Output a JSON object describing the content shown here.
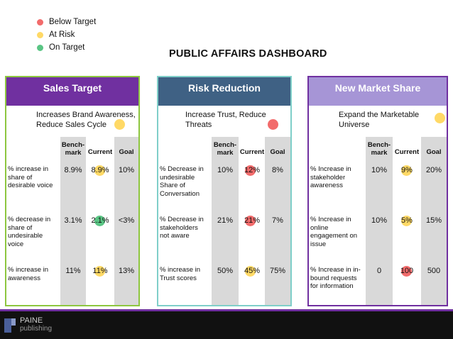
{
  "legend": [
    {
      "label": "Below Target",
      "color": "#f26b6b"
    },
    {
      "label": "At Risk",
      "color": "#ffd966"
    },
    {
      "label": "On Target",
      "color": "#5ac584"
    }
  ],
  "title": "PUBLIC AFFAIRS DASHBOARD",
  "column_headers": {
    "benchmark_line1": "Bench-",
    "benchmark_line2": "mark",
    "current": "Current",
    "goal": "Goal"
  },
  "panels": [
    {
      "title": "Sales Target",
      "border_color": "#8dc63f",
      "header_color": "#7030a0",
      "desc_line1": "Increases Brand Awareness,",
      "desc_line2": "Reduce Sales Cycle",
      "desc_status": "At Risk",
      "rows": [
        {
          "metric_line1": "% increase in",
          "metric_line2": "share of",
          "metric_line3": "desirable voice",
          "metric_line4": "",
          "benchmark": "8.9%",
          "current": "8.9%",
          "goal": "10%",
          "status": "At Risk"
        },
        {
          "metric_line1": "% decrease in",
          "metric_line2": "share of",
          "metric_line3": "undesirable",
          "metric_line4": "voice",
          "benchmark": "3.1%",
          "current": "2.1%",
          "goal": "<3%",
          "status": "On Target"
        },
        {
          "metric_line1": "% increase in",
          "metric_line2": "awareness",
          "metric_line3": "",
          "metric_line4": "",
          "benchmark": "11%",
          "current": "11%",
          "goal": "13%",
          "status": "At Risk"
        }
      ]
    },
    {
      "title": "Risk Reduction",
      "border_color": "#7fcfc9",
      "header_color": "#3f6184",
      "desc_line1": "Increase Trust, Reduce",
      "desc_line2": "Threats",
      "desc_status": "Below Target",
      "rows": [
        {
          "metric_line1": "% Decrease in",
          "metric_line2": "undesirable",
          "metric_line3": "Share of",
          "metric_line4": "Conversation",
          "benchmark": "10%",
          "current": "12%",
          "goal": "8%",
          "status": "Below Target"
        },
        {
          "metric_line1": "% Decrease in",
          "metric_line2": "stakeholders",
          "metric_line3": "not aware",
          "metric_line4": "",
          "benchmark": "21%",
          "current": "21%",
          "goal": "7%",
          "status": "Below Target"
        },
        {
          "metric_line1": "% increase in",
          "metric_line2": "Trust scores",
          "metric_line3": "",
          "metric_line4": "",
          "benchmark": "50%",
          "current": "45%",
          "goal": "75%",
          "status": "At Risk"
        }
      ]
    },
    {
      "title": "New Market Share",
      "border_color": "#7030a0",
      "header_color": "#a695d6",
      "desc_line1": "Expand the Marketable",
      "desc_line2": "Universe",
      "desc_status": "At Risk",
      "rows": [
        {
          "metric_line1": "% Increase in",
          "metric_line2": "stakeholder",
          "metric_line3": "awareness",
          "metric_line4": "",
          "benchmark": "10%",
          "current": "9%",
          "goal": "20%",
          "status": "At Risk"
        },
        {
          "metric_line1": "% Increase in",
          "metric_line2": "online",
          "metric_line3": "engagement on",
          "metric_line4": "issue",
          "benchmark": "10%",
          "current": "5%",
          "goal": "15%",
          "status": "At Risk"
        },
        {
          "metric_line1": "% Increase in in-",
          "metric_line2": "bound requests",
          "metric_line3": "for information",
          "metric_line4": "",
          "benchmark": "0",
          "current": "100",
          "goal": "500",
          "status": "Below Target"
        }
      ]
    }
  ],
  "footer": {
    "brand_line1": "PAINE",
    "brand_line2": "publishing"
  }
}
